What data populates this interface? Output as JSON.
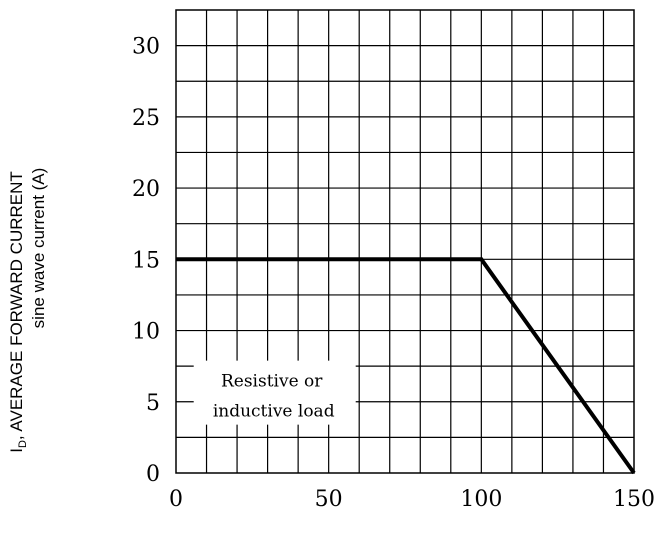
{
  "chart_data": {
    "type": "line",
    "title": "",
    "xlabel": "",
    "ylabel": {
      "line1_prefix": "I",
      "line1_sub": "D",
      "line1_rest": ", AVERAGE FORWARD CURRENT",
      "line2": "sine wave  current   (A)"
    },
    "xlim": [
      0,
      150
    ],
    "ylim": [
      0,
      32.5
    ],
    "x_ticks": [
      0,
      50,
      100,
      150
    ],
    "y_ticks": [
      0,
      5,
      10,
      15,
      20,
      25,
      30
    ],
    "grid": true,
    "series": [
      {
        "x": [
          0,
          100,
          150
        ],
        "y": [
          15,
          15,
          0
        ]
      }
    ],
    "annotation": {
      "lines": [
        "Resistive or",
        "inductive load"
      ],
      "x": 32,
      "y": 5.5
    }
  },
  "colors": {
    "line": "#000000",
    "grid": "#000000",
    "background": "#ffffff"
  }
}
